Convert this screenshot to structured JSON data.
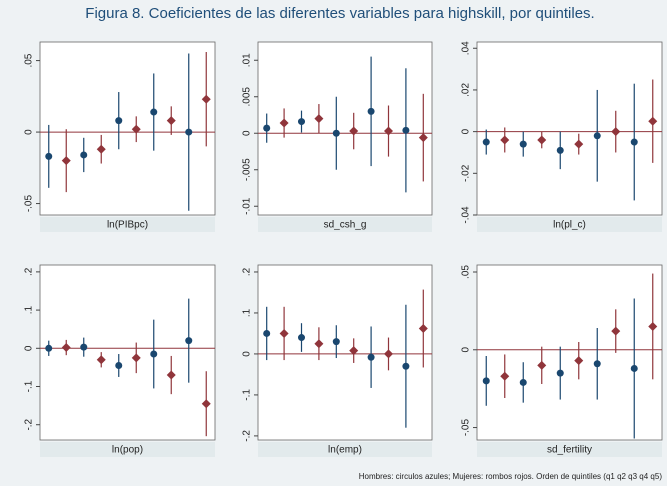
{
  "title": "Figura 8. Coeficientes de las diferentes variables para highskill, por quintiles.",
  "note": "Hombres: circulos azules; Mujeres: rombos rojos. Orden de quintiles (q1 q2 q3 q4 q5)",
  "chart_data": [
    {
      "type": "errorbar",
      "xlabel": "ln(PIBpc)",
      "ylim": [
        -0.058,
        0.063
      ],
      "yticks": [
        {
          "value": 0.05,
          "label": ".05"
        },
        0,
        {
          "value": -0.05,
          "label": "-.05"
        }
      ],
      "series": [
        {
          "color": "#1a476f",
          "marker": "circle",
          "values": [
            -0.017,
            -0.016,
            0.008,
            0.014,
            0.0
          ],
          "errors": [
            0.022,
            0.012,
            0.02,
            0.027,
            0.055
          ]
        },
        {
          "color": "#90353b",
          "marker": "diamond",
          "values": [
            -0.02,
            -0.012,
            0.002,
            0.008,
            0.023
          ],
          "errors": [
            0.022,
            0.01,
            0.009,
            0.01,
            0.033
          ]
        }
      ]
    },
    {
      "type": "errorbar",
      "xlabel": "sd_csh_g",
      "ylim": [
        -0.0112,
        0.0125
      ],
      "yticks": [
        {
          "value": 0.01,
          "label": ".01"
        },
        {
          "value": 0.005,
          "label": ".005"
        },
        0,
        {
          "value": -0.005,
          "label": "-.005"
        },
        {
          "value": -0.01,
          "label": "-.01"
        }
      ],
      "series": [
        {
          "color": "#1a476f",
          "marker": "circle",
          "values": [
            0.0007,
            0.0016,
            0.0,
            0.003,
            0.0004
          ],
          "errors": [
            0.002,
            0.0015,
            0.005,
            0.0075,
            0.0085
          ]
        },
        {
          "color": "#90353b",
          "marker": "diamond",
          "values": [
            0.0014,
            0.002,
            0.0003,
            0.0003,
            -0.0006
          ],
          "errors": [
            0.002,
            0.002,
            0.0025,
            0.0035,
            0.006
          ]
        }
      ]
    },
    {
      "type": "errorbar",
      "xlabel": "ln(pl_c)",
      "ylim": [
        -0.04,
        0.043
      ],
      "yticks": [
        {
          "value": 0.04,
          "label": ".04"
        },
        {
          "value": 0.02,
          "label": ".02"
        },
        0,
        {
          "value": -0.02,
          "label": "-.02"
        },
        {
          "value": -0.04,
          "label": "-.04"
        }
      ],
      "series": [
        {
          "color": "#1a476f",
          "marker": "circle",
          "values": [
            -0.005,
            -0.006,
            -0.009,
            -0.002,
            -0.005
          ],
          "errors": [
            0.006,
            0.006,
            0.009,
            0.022,
            0.028
          ]
        },
        {
          "color": "#90353b",
          "marker": "diamond",
          "values": [
            -0.004,
            -0.004,
            -0.006,
            0.0,
            0.005
          ],
          "errors": [
            0.006,
            0.004,
            0.005,
            0.01,
            0.02
          ]
        }
      ]
    },
    {
      "type": "errorbar",
      "xlabel": "ln(pop)",
      "ylim": [
        -0.24,
        0.218
      ],
      "yticks": [
        {
          "value": 0.2,
          "label": ".2"
        },
        {
          "value": 0.1,
          "label": ".1"
        },
        0,
        {
          "value": -0.1,
          "label": "-.1"
        },
        {
          "value": -0.2,
          "label": "-.2"
        }
      ],
      "series": [
        {
          "color": "#1a476f",
          "marker": "circle",
          "values": [
            0.0,
            0.003,
            -0.045,
            -0.015,
            0.02
          ],
          "errors": [
            0.02,
            0.025,
            0.03,
            0.09,
            0.11
          ]
        },
        {
          "color": "#90353b",
          "marker": "diamond",
          "values": [
            0.002,
            -0.03,
            -0.025,
            -0.07,
            -0.145
          ],
          "errors": [
            0.02,
            0.02,
            0.04,
            0.05,
            0.085
          ]
        }
      ]
    },
    {
      "type": "errorbar",
      "xlabel": "ln(emp)",
      "ylim": [
        -0.21,
        0.217
      ],
      "yticks": [
        {
          "value": 0.2,
          "label": ".2"
        },
        {
          "value": 0.1,
          "label": ".1"
        },
        0,
        {
          "value": -0.1,
          "label": "-.1"
        },
        {
          "value": -0.2,
          "label": "-.2"
        }
      ],
      "series": [
        {
          "color": "#1a476f",
          "marker": "circle",
          "values": [
            0.05,
            0.04,
            0.03,
            -0.008,
            -0.03
          ],
          "errors": [
            0.065,
            0.035,
            0.04,
            0.075,
            0.15
          ]
        },
        {
          "color": "#90353b",
          "marker": "diamond",
          "values": [
            0.05,
            0.025,
            0.008,
            0.0,
            0.062
          ],
          "errors": [
            0.065,
            0.04,
            0.03,
            0.04,
            0.095
          ]
        }
      ]
    },
    {
      "type": "errorbar",
      "xlabel": "sd_fertility",
      "ylim": [
        -0.058,
        0.0545
      ],
      "yticks": [
        {
          "value": 0.05,
          "label": ".05"
        },
        0,
        {
          "value": -0.05,
          "label": "-.05"
        }
      ],
      "series": [
        {
          "color": "#1a476f",
          "marker": "circle",
          "values": [
            -0.02,
            -0.021,
            -0.015,
            -0.009,
            -0.012
          ],
          "errors": [
            0.016,
            0.013,
            0.017,
            0.023,
            0.045
          ]
        },
        {
          "color": "#90353b",
          "marker": "diamond",
          "values": [
            -0.017,
            -0.01,
            -0.007,
            0.012,
            0.015
          ],
          "errors": [
            0.014,
            0.012,
            0.012,
            0.014,
            0.034
          ]
        }
      ]
    }
  ]
}
